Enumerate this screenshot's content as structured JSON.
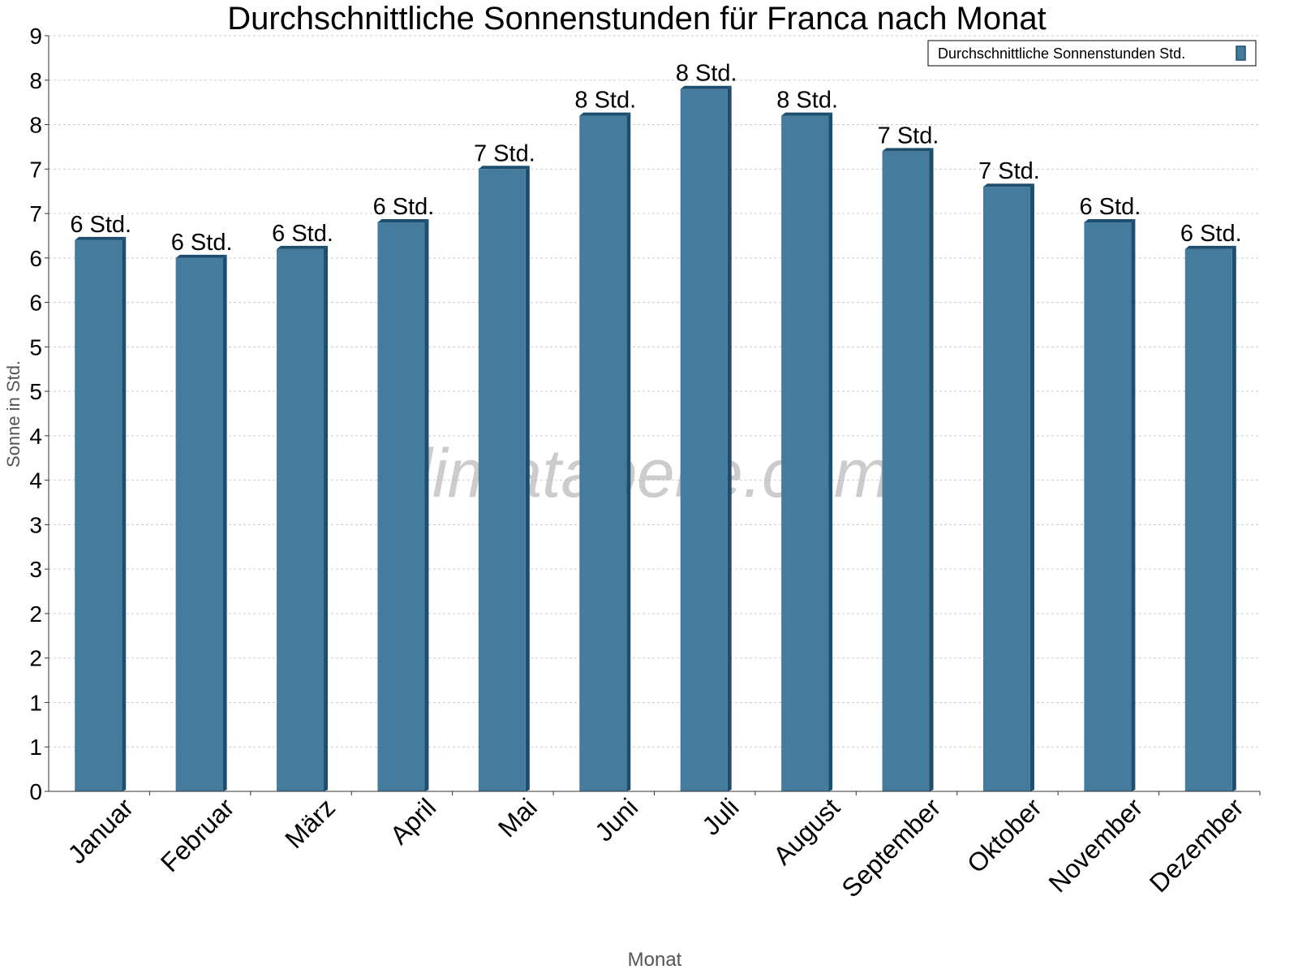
{
  "chart_data": {
    "type": "bar",
    "title": "Durchschnittliche Sonnenstunden für Franca nach Monat",
    "xlabel": "Monat",
    "ylabel": "Sonne in Std.",
    "categories": [
      "Januar",
      "Februar",
      "März",
      "April",
      "Mai",
      "Juni",
      "Juli",
      "August",
      "September",
      "Oktober",
      "November",
      "Dezember"
    ],
    "series": [
      {
        "name": "Durchschnittliche Sonnenstunden Std.",
        "values": [
          6.2,
          6.0,
          6.1,
          6.4,
          7.0,
          7.6,
          7.9,
          7.6,
          7.2,
          6.8,
          6.4,
          6.1
        ],
        "labels": [
          "6 Std.",
          "6 Std.",
          "6 Std.",
          "6 Std.",
          "7 Std.",
          "8 Std.",
          "8 Std.",
          "8 Std.",
          "7 Std.",
          "7 Std.",
          "6 Std.",
          "6 Std."
        ]
      }
    ],
    "ylim": [
      0,
      8.5
    ],
    "yticks": [
      0,
      0.5,
      1,
      1.5,
      2,
      2.5,
      3,
      3.5,
      4,
      4.5,
      5,
      5.5,
      6,
      6.5,
      7,
      7.5,
      8,
      8.5
    ],
    "ytick_labels": [
      "0",
      "1",
      "1",
      "2",
      "2",
      "3",
      "3",
      "4",
      "4",
      "5",
      "5",
      "6",
      "6",
      "7",
      "7",
      "8",
      "8",
      "9"
    ],
    "grid": true,
    "legend": "top-right",
    "watermark": "klimatabelle.com",
    "colors": {
      "bar": "#457b9d",
      "bar_side": "#1d4e6e"
    }
  }
}
